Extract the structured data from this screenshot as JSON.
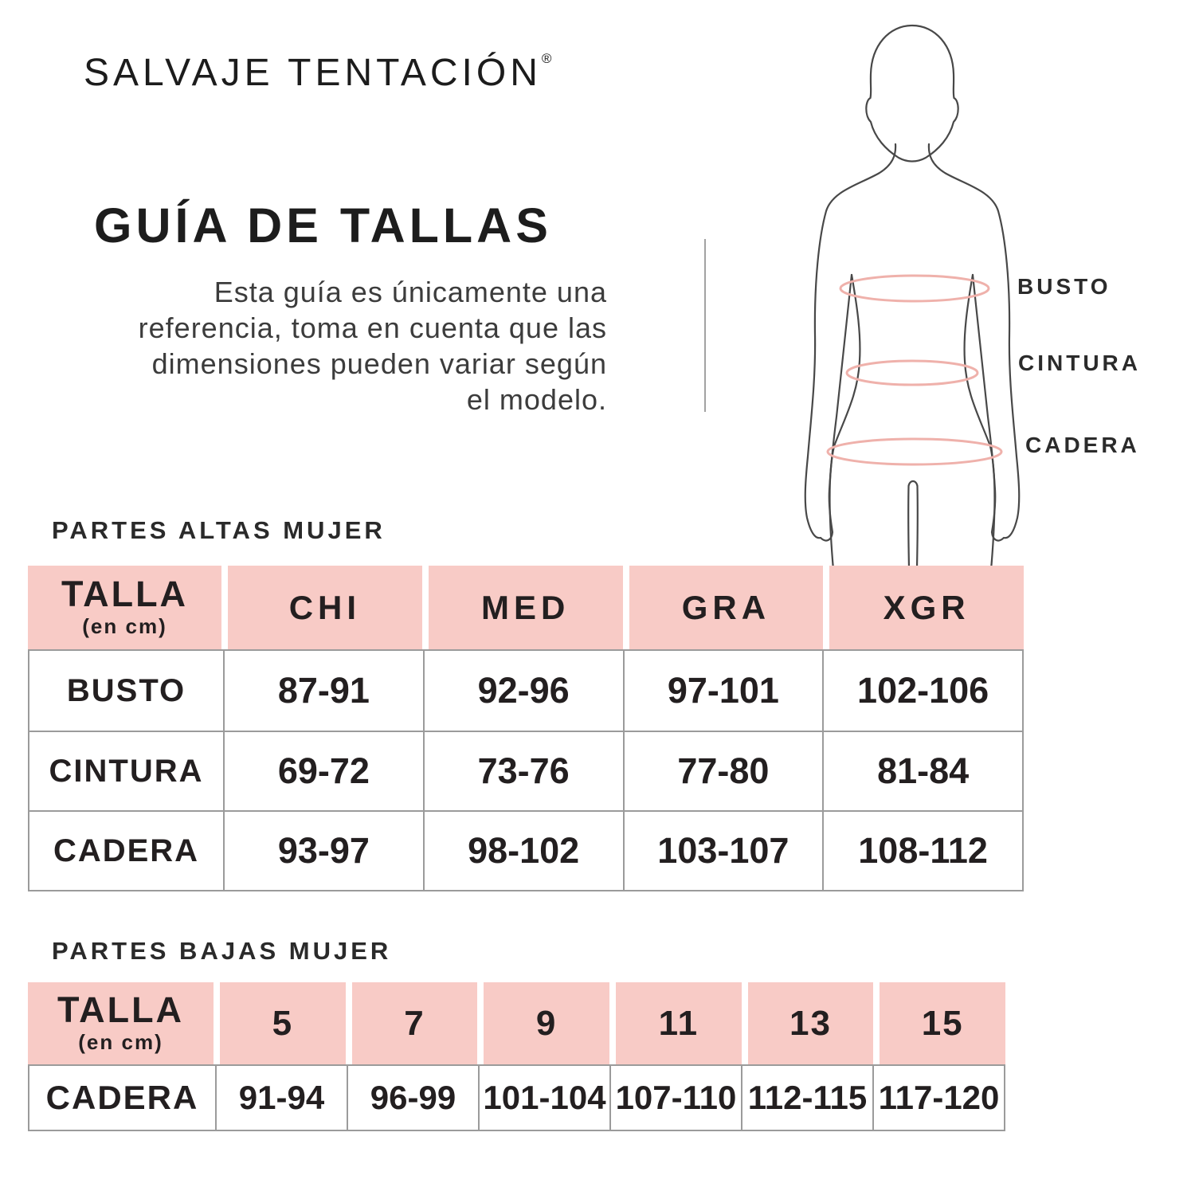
{
  "brand": {
    "name": "SALVAJE TENTACIÓN",
    "registered_mark": "®"
  },
  "header": {
    "title": "GUÍA DE TALLAS",
    "intro_lines": [
      "Esta guía es únicamente una",
      "referencia, toma en cuenta que las",
      "dimensiones pueden variar según",
      "el modelo."
    ]
  },
  "figure": {
    "measure_labels": [
      "BUSTO",
      "CINTURA",
      "CADERA"
    ]
  },
  "colors": {
    "header_pink": "#f8cbc6",
    "measure_line_pink": "#efb1ab",
    "table_border_gray": "#9b9b9b",
    "text_ink": "#231f20"
  },
  "tables": [
    {
      "section": "PARTES ALTAS MUJER",
      "corner": {
        "title": "TALLA",
        "unit": "(en cm)"
      },
      "columns": [
        "CHI",
        "MED",
        "GRA",
        "XGR"
      ],
      "rows": [
        {
          "label": "BUSTO",
          "values": [
            "87-91",
            "92-96",
            "97-101",
            "102-106"
          ]
        },
        {
          "label": "CINTURA",
          "values": [
            "69-72",
            "73-76",
            "77-80",
            "81-84"
          ]
        },
        {
          "label": "CADERA",
          "values": [
            "93-97",
            "98-102",
            "103-107",
            "108-112"
          ]
        }
      ]
    },
    {
      "section": "PARTES BAJAS MUJER",
      "corner": {
        "title": "TALLA",
        "unit": "(en cm)"
      },
      "columns": [
        "5",
        "7",
        "9",
        "11",
        "13",
        "15"
      ],
      "rows": [
        {
          "label": "CADERA",
          "values": [
            "91-94",
            "96-99",
            "101-104",
            "107-110",
            "112-115",
            "117-120"
          ]
        }
      ]
    }
  ]
}
